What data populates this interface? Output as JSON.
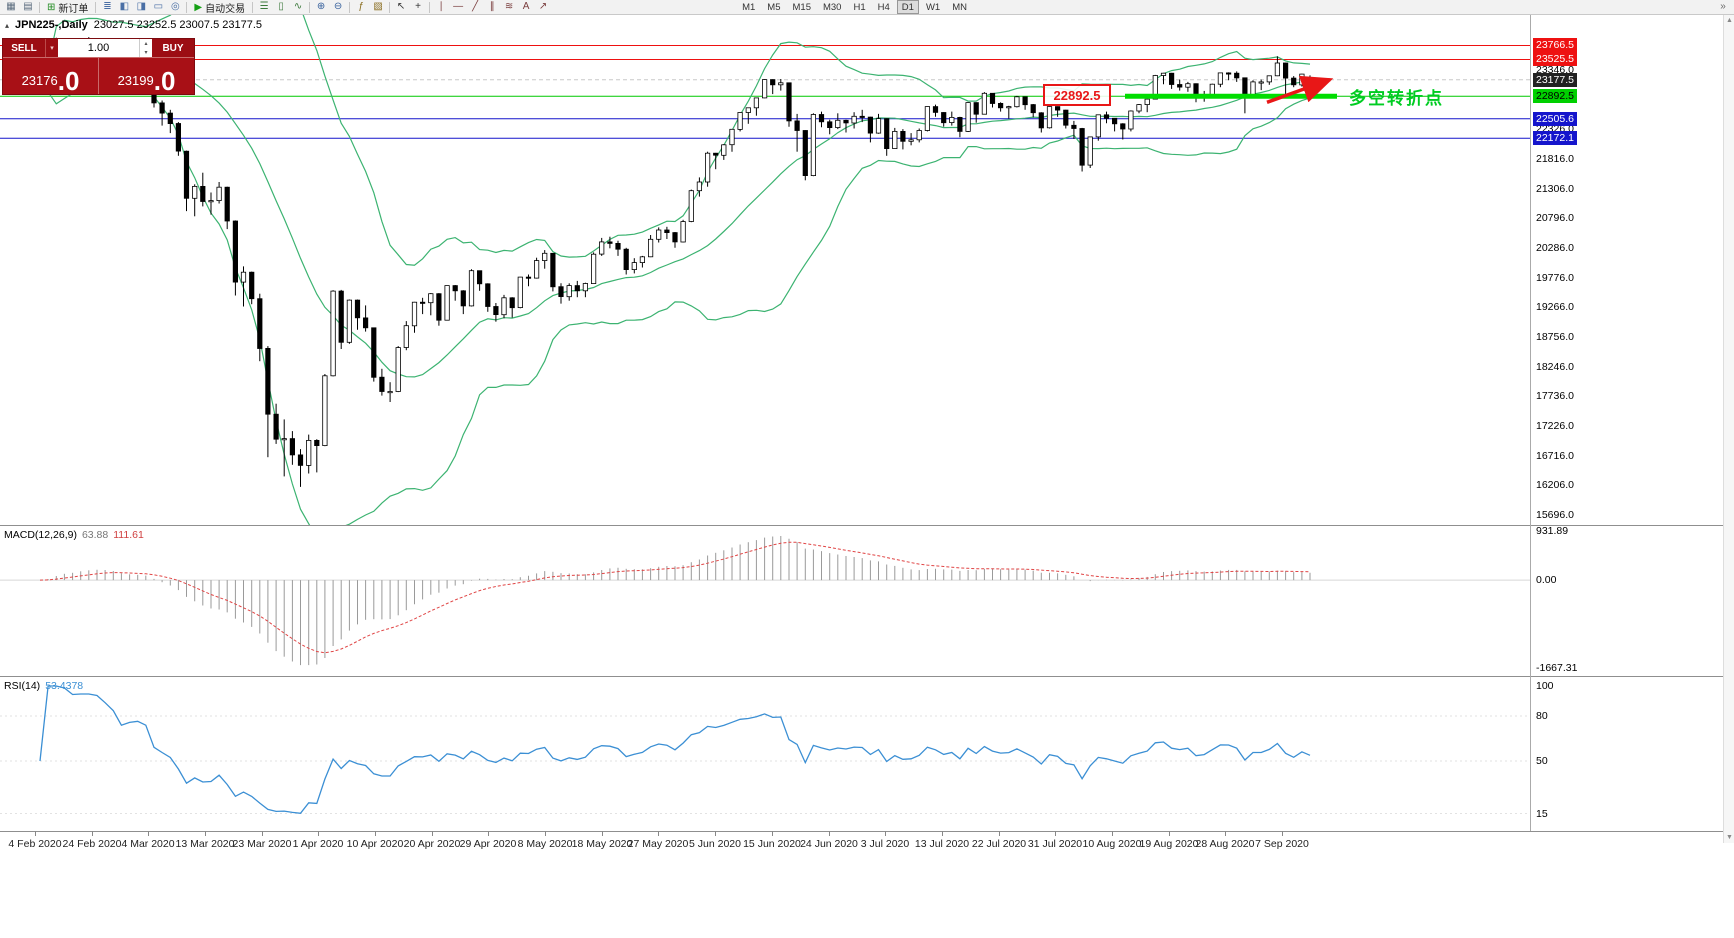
{
  "toolbar": {
    "items": [
      {
        "t": "icon",
        "name": "new-chart-icon",
        "g": "▦",
        "c": "#5a6b7d"
      },
      {
        "t": "icon",
        "name": "chart-profiles-icon",
        "g": "▤",
        "c": "#5a6b7d"
      },
      {
        "t": "sep"
      },
      {
        "t": "btn",
        "name": "new-order-button",
        "g": "⊞",
        "gc": "#1f8a1f",
        "label": "新订单"
      },
      {
        "t": "sep"
      },
      {
        "t": "icon",
        "name": "market-watch-icon",
        "g": "≣",
        "c": "#4a6fa5"
      },
      {
        "t": "icon",
        "name": "data-window-icon",
        "g": "◧",
        "c": "#4a6fa5"
      },
      {
        "t": "icon",
        "name": "navigator-icon",
        "g": "◨",
        "c": "#4a6fa5"
      },
      {
        "t": "icon",
        "name": "terminal-icon",
        "g": "▭",
        "c": "#4a6fa5"
      },
      {
        "t": "icon",
        "name": "strategy-tester-icon",
        "g": "◎",
        "c": "#4a6fa5"
      },
      {
        "t": "sep"
      },
      {
        "t": "btn",
        "name": "autotrading-button",
        "g": "▶",
        "gc": "#15a015",
        "label": "自动交易"
      },
      {
        "t": "sep"
      },
      {
        "t": "icon",
        "name": "bar-chart-icon",
        "g": "☰",
        "c": "#3d7a3d"
      },
      {
        "t": "icon",
        "name": "candlestick-chart-icon",
        "g": "▯",
        "c": "#3d7a3d"
      },
      {
        "t": "icon",
        "name": "line-chart-icon",
        "g": "∿",
        "c": "#3d7a3d"
      },
      {
        "t": "sep"
      },
      {
        "t": "icon",
        "name": "zoom-in-icon",
        "g": "⊕",
        "c": "#36609c"
      },
      {
        "t": "icon",
        "name": "zoom-out-icon",
        "g": "⊖",
        "c": "#36609c"
      },
      {
        "t": "sep"
      },
      {
        "t": "icon",
        "name": "indicators-icon",
        "g": "ƒ",
        "c": "#8a6d1f"
      },
      {
        "t": "icon",
        "name": "templates-icon",
        "g": "▧",
        "c": "#8a6d1f"
      },
      {
        "t": "sep"
      },
      {
        "t": "icon",
        "name": "cursor-icon",
        "g": "↖",
        "c": "#333333"
      },
      {
        "t": "icon",
        "name": "crosshair-icon",
        "g": "+",
        "c": "#333333"
      },
      {
        "t": "sep"
      },
      {
        "t": "icon",
        "name": "vertical-line-icon",
        "g": "∣",
        "c": "#7a3d3d"
      },
      {
        "t": "icon",
        "name": "horizontal-line-icon",
        "g": "―",
        "c": "#7a3d3d"
      },
      {
        "t": "icon",
        "name": "trendline-icon",
        "g": "╱",
        "c": "#7a3d3d"
      },
      {
        "t": "icon",
        "name": "channel-icon",
        "g": "∥",
        "c": "#7a3d3d"
      },
      {
        "t": "icon",
        "name": "fibonacci-icon",
        "g": "≋",
        "c": "#7a3d3d"
      },
      {
        "t": "icon",
        "name": "text-icon",
        "g": "A",
        "c": "#7a3d3d"
      },
      {
        "t": "icon",
        "name": "arrows-icon",
        "g": "↗",
        "c": "#7a3d3d"
      }
    ],
    "timeframes": [
      "M1",
      "M5",
      "M15",
      "M30",
      "H1",
      "H4",
      "D1",
      "W1",
      "MN"
    ],
    "active_timeframe": "D1",
    "overflow_icon": "»"
  },
  "symbol_header": {
    "icon": "▴",
    "title": "JPN225-,Daily",
    "ohlc": "23027.5 23252.5 23007.5 23177.5"
  },
  "trade_panel": {
    "sell_label": "SELL",
    "buy_label": "BUY",
    "volume": "1.00",
    "sell_caret": "▾",
    "spinner_up": "▴",
    "spinner_down": "▾",
    "sell_price_main": "23176",
    "sell_price_frac": ".0",
    "buy_price_main": "23199",
    "buy_price_frac": ".0"
  },
  "annotations": {
    "level_label": "22892.5",
    "turning_point": "多空转折点"
  },
  "indicators": {
    "macd": {
      "name": "MACD(12,26,9)",
      "value": "63.88",
      "signal": "111.61",
      "scale": [
        "931.89",
        "0.00",
        "-1667.31"
      ]
    },
    "rsi": {
      "name": "RSI(14)",
      "value": "53.4378",
      "scale": [
        "100",
        "80",
        "50",
        "15"
      ]
    }
  },
  "price_scale": {
    "plain": [
      "23346.0",
      "22326.0",
      "21816.0",
      "21306.0",
      "20796.0",
      "20286.0",
      "19776.0",
      "19266.0",
      "18756.0",
      "18246.0",
      "17736.0",
      "17226.0",
      "16716.0",
      "16206.0",
      "15696.0"
    ],
    "levels": [
      {
        "text": "23766.5",
        "price": 23766.5,
        "type": "red"
      },
      {
        "text": "23525.5",
        "price": 23525.5,
        "type": "red"
      },
      {
        "text": "23177.5",
        "price": 23177.5,
        "type": "current"
      },
      {
        "text": "22892.5",
        "price": 22892.5,
        "type": "green"
      },
      {
        "text": "22505.6",
        "price": 22505.6,
        "type": "blue"
      },
      {
        "text": "22172.1",
        "price": 22172.1,
        "type": "blue"
      }
    ]
  },
  "dates": [
    "4 Feb 2020",
    "24 Feb 2020",
    "4 Mar 2020",
    "13 Mar 2020",
    "23 Mar 2020",
    "1 Apr 2020",
    "10 Apr 2020",
    "20 Apr 2020",
    "29 Apr 2020",
    "8 May 2020",
    "18 May 2020",
    "27 May 2020",
    "5 Jun 2020",
    "15 Jun 2020",
    "24 Jun 2020",
    "3 Jul 2020",
    "13 Jul 2020",
    "22 Jul 2020",
    "31 Jul 2020",
    "10 Aug 2020",
    "19 Aug 2020",
    "28 Aug 2020",
    "7 Sep 2020"
  ],
  "chart_data": {
    "type": "candlestick",
    "symbol": "JPN225-",
    "period": "Daily",
    "ohlc_current": {
      "open": 23027.5,
      "high": 23252.5,
      "low": 23007.5,
      "close": 23177.5
    },
    "y_axis": {
      "min": 15696.0,
      "max": 23766.5,
      "grid_step": 510
    },
    "levels": {
      "red_resistance": [
        23766.5,
        23525.5
      ],
      "blue_support": [
        22505.6,
        22172.1
      ],
      "green_pivot": 22892.5,
      "current_bid": 23177.5
    },
    "indicators": {
      "bollinger": {
        "period": 20,
        "deviation": 2
      },
      "macd": {
        "fast": 12,
        "slow": 26,
        "signal": 9,
        "value": 63.88,
        "signal_value": 111.61
      },
      "rsi": {
        "period": 14,
        "value": 53.4378
      }
    },
    "candles": [
      [
        23000,
        23130,
        22950,
        23085
      ],
      [
        23085,
        23360,
        23050,
        23320
      ],
      [
        23320,
        23900,
        23300,
        23875
      ],
      [
        23875,
        23890,
        23740,
        23830
      ],
      [
        23830,
        23840,
        23580,
        23685
      ],
      [
        23685,
        23880,
        23660,
        23860
      ],
      [
        23860,
        23910,
        23790,
        23860
      ],
      [
        23860,
        23880,
        23710,
        23830
      ],
      [
        23830,
        23840,
        23610,
        23690
      ],
      [
        23690,
        23710,
        23480,
        23525
      ],
      [
        23525,
        23530,
        23130,
        23195
      ],
      [
        23195,
        23420,
        23180,
        23400
      ],
      [
        23400,
        23510,
        23330,
        23480
      ],
      [
        23480,
        23490,
        23285,
        23390
      ],
      [
        23390,
        23395,
        22700,
        22780
      ],
      [
        22780,
        22820,
        22390,
        22605
      ],
      [
        22605,
        22660,
        22260,
        22425
      ],
      [
        22425,
        22450,
        21870,
        21950
      ],
      [
        21950,
        21960,
        20920,
        21140
      ],
      [
        21140,
        21380,
        20830,
        21345
      ],
      [
        21345,
        21580,
        21000,
        21085
      ],
      [
        21085,
        21240,
        20860,
        21100
      ],
      [
        21100,
        21420,
        21050,
        21330
      ],
      [
        21330,
        21340,
        20610,
        20750
      ],
      [
        20750,
        20760,
        19470,
        19700
      ],
      [
        19700,
        19970,
        19280,
        19870
      ],
      [
        19870,
        19880,
        19320,
        19415
      ],
      [
        19415,
        19500,
        18340,
        18560
      ],
      [
        18560,
        18600,
        16690,
        17430
      ],
      [
        17430,
        17610,
        16920,
        17000
      ],
      [
        17000,
        17340,
        16360,
        17010
      ],
      [
        17010,
        17140,
        16560,
        16730
      ],
      [
        16730,
        16830,
        16180,
        16550
      ],
      [
        16550,
        17080,
        16410,
        16980
      ],
      [
        16980,
        17000,
        16430,
        16890
      ],
      [
        16890,
        18120,
        16880,
        18090
      ],
      [
        18090,
        19560,
        18080,
        19545
      ],
      [
        19545,
        19565,
        18550,
        18665
      ],
      [
        18665,
        19400,
        18640,
        19390
      ],
      [
        19390,
        19400,
        18880,
        19085
      ],
      [
        19085,
        19300,
        18850,
        18915
      ],
      [
        18915,
        18920,
        17990,
        18065
      ],
      [
        18065,
        18210,
        17750,
        17820
      ],
      [
        17820,
        17980,
        17640,
        17820
      ],
      [
        17820,
        18600,
        17810,
        18575
      ],
      [
        18575,
        19030,
        18530,
        18950
      ],
      [
        18950,
        19360,
        18830,
        19355
      ],
      [
        19355,
        19430,
        19150,
        19345
      ],
      [
        19345,
        19510,
        19130,
        19500
      ],
      [
        19500,
        19510,
        18950,
        19045
      ],
      [
        19045,
        19640,
        19040,
        19640
      ],
      [
        19640,
        19650,
        19380,
        19550
      ],
      [
        19550,
        19560,
        19150,
        19290
      ],
      [
        19290,
        19920,
        19280,
        19895
      ],
      [
        19895,
        19900,
        19550,
        19670
      ],
      [
        19670,
        19680,
        19190,
        19280
      ],
      [
        19280,
        19340,
        19020,
        19140
      ],
      [
        19140,
        19480,
        19080,
        19430
      ],
      [
        19430,
        19440,
        19090,
        19260
      ],
      [
        19260,
        19790,
        19250,
        19785
      ],
      [
        19785,
        19830,
        19630,
        19770
      ],
      [
        19770,
        20120,
        19760,
        20070
      ],
      [
        20070,
        20250,
        19930,
        20195
      ],
      [
        20195,
        20200,
        19540,
        19620
      ],
      [
        19620,
        19680,
        19330,
        19450
      ],
      [
        19450,
        19680,
        19380,
        19640
      ],
      [
        19640,
        19720,
        19440,
        19550
      ],
      [
        19550,
        19690,
        19440,
        19675
      ],
      [
        19675,
        20210,
        19670,
        20180
      ],
      [
        20180,
        20460,
        20150,
        20390
      ],
      [
        20390,
        20480,
        20280,
        20365
      ],
      [
        20365,
        20410,
        20150,
        20265
      ],
      [
        20265,
        20290,
        19830,
        19915
      ],
      [
        19915,
        20110,
        19850,
        20035
      ],
      [
        20035,
        20150,
        19950,
        20135
      ],
      [
        20135,
        20510,
        20130,
        20435
      ],
      [
        20435,
        20640,
        20380,
        20595
      ],
      [
        20595,
        20650,
        20440,
        20550
      ],
      [
        20550,
        20560,
        20290,
        20390
      ],
      [
        20390,
        20770,
        20380,
        20740
      ],
      [
        20740,
        21290,
        20730,
        21270
      ],
      [
        21270,
        21500,
        21170,
        21420
      ],
      [
        21420,
        21940,
        21340,
        21915
      ],
      [
        21915,
        21920,
        21640,
        21880
      ],
      [
        21880,
        22070,
        21800,
        22060
      ],
      [
        22060,
        22330,
        21940,
        22325
      ],
      [
        22325,
        22620,
        22290,
        22615
      ],
      [
        22615,
        22700,
        22420,
        22695
      ],
      [
        22695,
        22870,
        22560,
        22865
      ],
      [
        22865,
        23185,
        22860,
        23180
      ],
      [
        23180,
        23185,
        22930,
        23090
      ],
      [
        23090,
        23190,
        22990,
        23125
      ],
      [
        23125,
        23130,
        22370,
        22470
      ],
      [
        22470,
        22590,
        21940,
        22305
      ],
      [
        22305,
        22310,
        21450,
        21530
      ],
      [
        21530,
        22600,
        21520,
        22580
      ],
      [
        22580,
        22630,
        22360,
        22455
      ],
      [
        22455,
        22490,
        22240,
        22355
      ],
      [
        22355,
        22600,
        22330,
        22480
      ],
      [
        22480,
        22490,
        22270,
        22435
      ],
      [
        22435,
        22620,
        22340,
        22550
      ],
      [
        22550,
        22660,
        22450,
        22535
      ],
      [
        22535,
        22540,
        22100,
        22260
      ],
      [
        22260,
        22590,
        22250,
        22510
      ],
      [
        22510,
        22515,
        21870,
        21995
      ],
      [
        21995,
        22350,
        21990,
        22290
      ],
      [
        22290,
        22330,
        21980,
        22120
      ],
      [
        22120,
        22260,
        22050,
        22145
      ],
      [
        22145,
        22340,
        22100,
        22305
      ],
      [
        22305,
        22720,
        22290,
        22715
      ],
      [
        22715,
        22750,
        22540,
        22615
      ],
      [
        22615,
        22620,
        22370,
        22440
      ],
      [
        22440,
        22630,
        22390,
        22530
      ],
      [
        22530,
        22540,
        22190,
        22290
      ],
      [
        22290,
        22790,
        22280,
        22785
      ],
      [
        22785,
        22790,
        22440,
        22585
      ],
      [
        22585,
        22965,
        22580,
        22945
      ],
      [
        22945,
        22950,
        22700,
        22770
      ],
      [
        22770,
        22790,
        22630,
        22695
      ],
      [
        22695,
        22730,
        22510,
        22715
      ],
      [
        22715,
        22900,
        22700,
        22885
      ],
      [
        22885,
        22890,
        22660,
        22750
      ],
      [
        22750,
        22760,
        22530,
        22610
      ],
      [
        22610,
        22620,
        22270,
        22350
      ],
      [
        22350,
        22720,
        22340,
        22715
      ],
      [
        22715,
        22720,
        22540,
        22655
      ],
      [
        22655,
        22660,
        22340,
        22395
      ],
      [
        22395,
        22470,
        22160,
        22340
      ],
      [
        22340,
        22350,
        21600,
        21710
      ],
      [
        21710,
        22200,
        21660,
        22195
      ],
      [
        22195,
        22580,
        22130,
        22575
      ],
      [
        22575,
        22630,
        22430,
        22515
      ],
      [
        22515,
        22520,
        22290,
        22420
      ],
      [
        22420,
        22430,
        22150,
        22330
      ],
      [
        22330,
        22650,
        22290,
        22640
      ],
      [
        22640,
        22760,
        22600,
        22750
      ],
      [
        22750,
        22850,
        22620,
        22845
      ],
      [
        22845,
        23260,
        22840,
        23250
      ],
      [
        23250,
        23295,
        23100,
        23290
      ],
      [
        23290,
        23295,
        23020,
        23095
      ],
      [
        23095,
        23180,
        22990,
        23050
      ],
      [
        23050,
        23140,
        22970,
        23110
      ],
      [
        23110,
        23115,
        22790,
        22880
      ],
      [
        22880,
        22985,
        22800,
        22920
      ],
      [
        22920,
        23110,
        22890,
        23100
      ],
      [
        23100,
        23300,
        23050,
        23295
      ],
      [
        23295,
        23305,
        23170,
        23290
      ],
      [
        23290,
        23320,
        23140,
        23210
      ],
      [
        23210,
        23215,
        22600,
        22880
      ],
      [
        22880,
        23170,
        22860,
        23140
      ],
      [
        23140,
        23180,
        23000,
        23140
      ],
      [
        23140,
        23250,
        23090,
        23245
      ],
      [
        23245,
        23580,
        23240,
        23465
      ],
      [
        23465,
        23470,
        22870,
        23205
      ],
      [
        23205,
        23240,
        23050,
        23090
      ],
      [
        23090,
        23280,
        23060,
        23275
      ],
      [
        23027.5,
        23252.5,
        23007.5,
        23177.5
      ]
    ]
  }
}
